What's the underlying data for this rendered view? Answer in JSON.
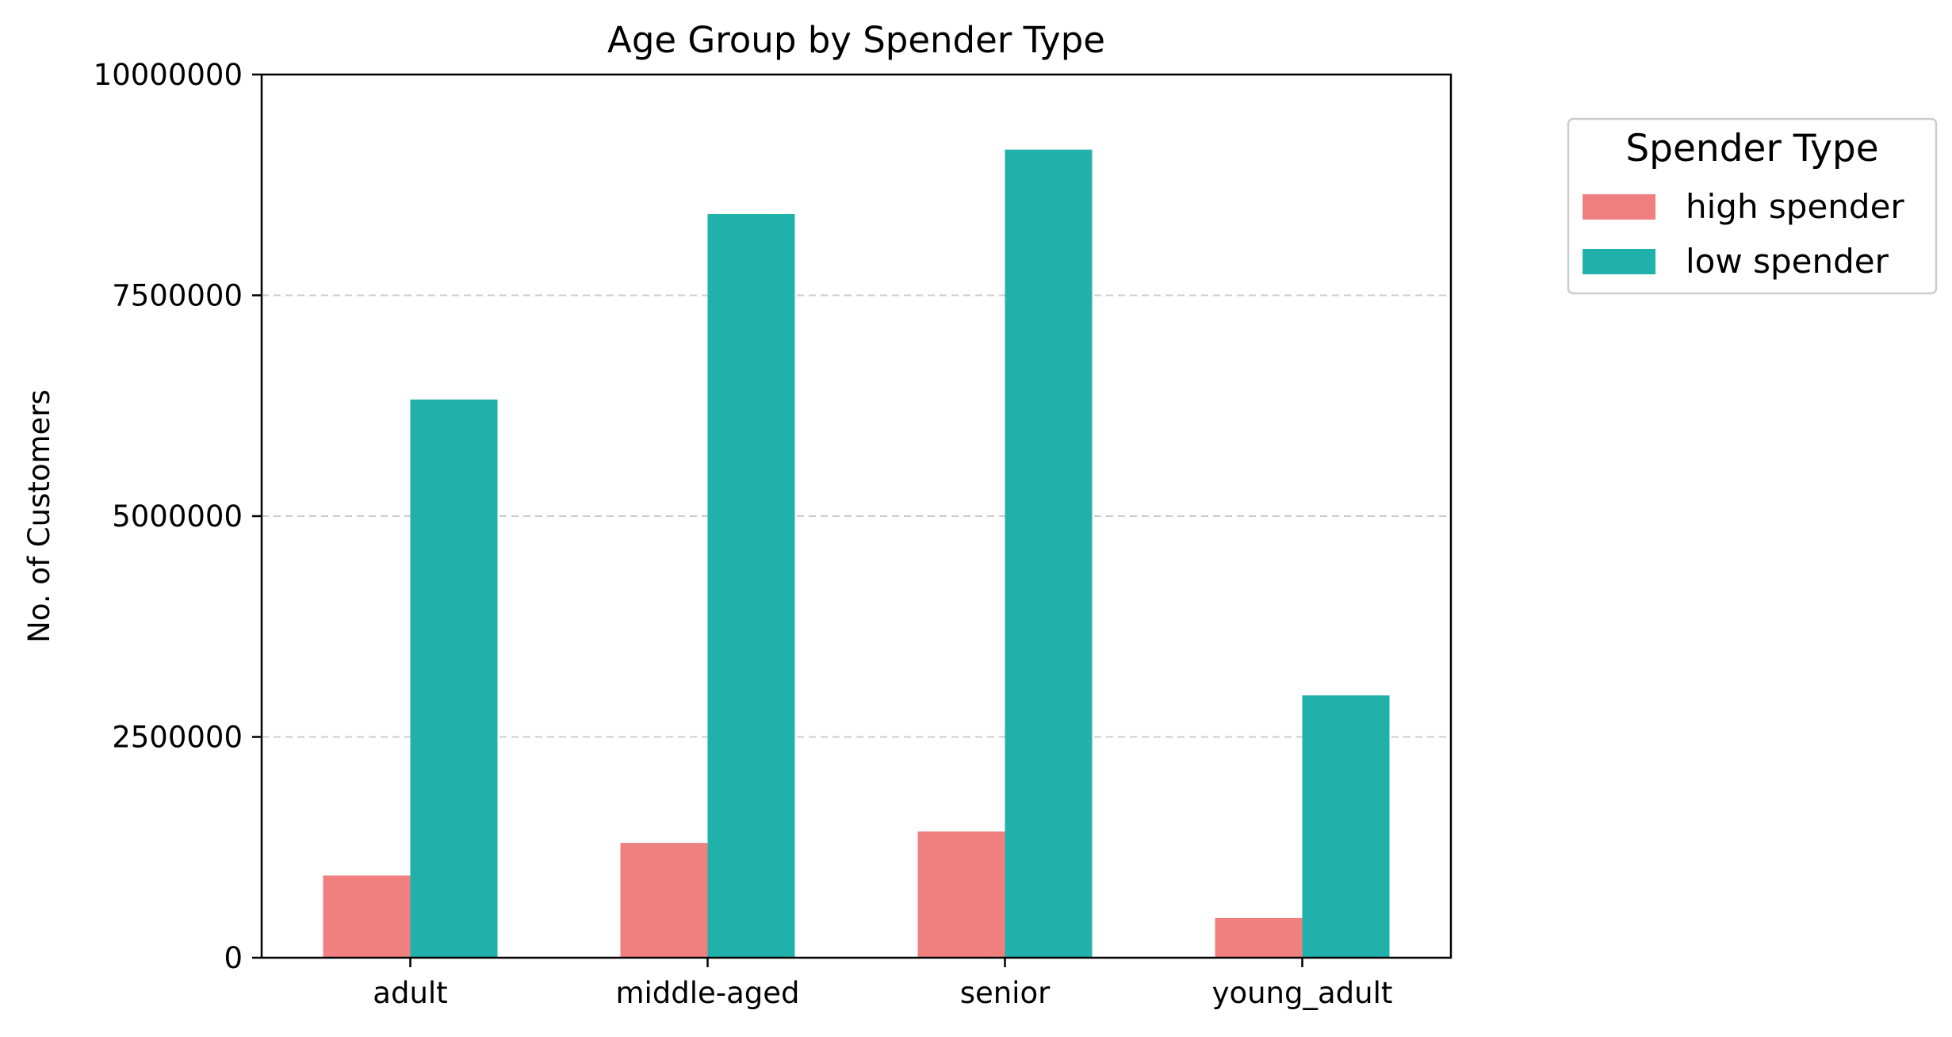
{
  "chart_data": {
    "type": "bar",
    "title": "Age Group by Spender Type",
    "xlabel": "",
    "ylabel": "No. of Customers",
    "categories": [
      "adult",
      "middle-aged",
      "senior",
      "young_adult"
    ],
    "series": [
      {
        "name": "high spender",
        "color": "#F08080",
        "values": [
          930000,
          1300000,
          1430000,
          450000
        ]
      },
      {
        "name": "low spender",
        "color": "#20B2AA",
        "values": [
          6320000,
          8420000,
          9150000,
          2970000
        ]
      }
    ],
    "ylim": [
      0,
      10000000
    ],
    "yticks": [
      "0",
      "2500000",
      "5000000",
      "7500000",
      "10000000"
    ],
    "grid": {
      "axis": "y",
      "style": "dashed",
      "color": "#cccccc"
    },
    "legend": {
      "title": "Spender Type",
      "placement": "outside-top-right"
    }
  }
}
